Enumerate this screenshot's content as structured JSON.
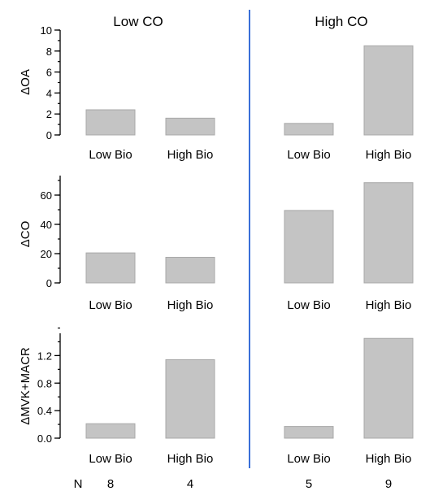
{
  "chart_data": [
    {
      "type": "bar",
      "ylabel": "ΔOA",
      "categories": [
        "Low Bio",
        "High Bio",
        "Low Bio",
        "High Bio"
      ],
      "groups": [
        "Low CO",
        "Low CO",
        "High CO",
        "High CO"
      ],
      "values": [
        2.4,
        1.6,
        1.1,
        8.5
      ],
      "ylim": [
        0,
        10
      ],
      "yticks": [
        "0",
        "2",
        "4",
        "6",
        "8",
        "10"
      ],
      "ytick_values": [
        0,
        2,
        4,
        6,
        8,
        10
      ],
      "minor_step": 1
    },
    {
      "type": "bar",
      "ylabel": "ΔCO",
      "categories": [
        "Low Bio",
        "High Bio",
        "Low Bio",
        "High Bio"
      ],
      "groups": [
        "Low CO",
        "Low CO",
        "High CO",
        "High CO"
      ],
      "values": [
        20.5,
        17.5,
        49.5,
        68.5
      ],
      "ylim": [
        0,
        70
      ],
      "yticks": [
        "0",
        "20",
        "40",
        "60"
      ],
      "ytick_values": [
        0,
        20,
        40,
        60
      ],
      "minor_step": 10
    },
    {
      "type": "bar",
      "ylabel": "ΔMVK+MACR",
      "categories": [
        "Low Bio",
        "High Bio",
        "Low Bio",
        "High Bio"
      ],
      "groups": [
        "Low CO",
        "Low CO",
        "High CO",
        "High CO"
      ],
      "values": [
        0.21,
        1.14,
        0.17,
        1.45
      ],
      "ylim": [
        0,
        1.5
      ],
      "yticks": [
        "0.0",
        "0.4",
        "0.8",
        "1.2"
      ],
      "ytick_values": [
        0,
        0.4,
        0.8,
        1.2
      ],
      "minor_step": 0.2
    }
  ],
  "group_titles": [
    "Low CO",
    "High CO"
  ],
  "n_row": {
    "label": "N",
    "values": [
      "8",
      "4",
      "5",
      "9"
    ]
  },
  "colors": {
    "bar_fill": "#c4c4c4",
    "bar_edge": "#a8a8a8",
    "divider": "#3a6fd8",
    "axis": "#000000"
  }
}
